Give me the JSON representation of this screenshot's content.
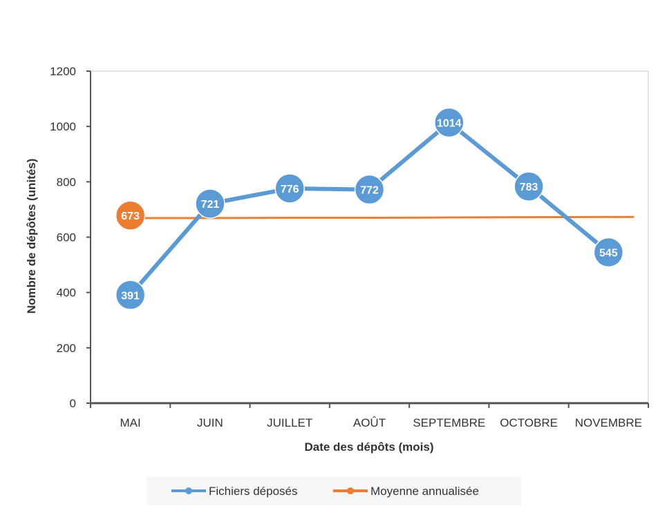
{
  "chart_data": {
    "type": "line",
    "title": "",
    "xlabel": "Date des dépôts (mois)",
    "ylabel": "Nombre de dépôtes (unités)",
    "categories": [
      "MAI",
      "JUIN",
      "JUILLET",
      "AOÛT",
      "SEPTEMBRE",
      "OCTOBRE",
      "NOVEMBRE"
    ],
    "ylim": [
      0,
      1200
    ],
    "yticks": [
      "0",
      "200",
      "400",
      "600",
      "800",
      "1000",
      "1200"
    ],
    "grid": false,
    "legend_position": "bottom",
    "series": [
      {
        "name": "Fichiers déposés",
        "color": "#5B9BD5",
        "values": [
          391,
          721,
          776,
          772,
          1014,
          783,
          545
        ],
        "labels": [
          "391",
          "721",
          "776",
          "772",
          "1014",
          "783",
          "545"
        ]
      },
      {
        "name": "Moyenne annualisée",
        "color": "#ED7D31",
        "values": [
          669,
          669,
          670,
          670,
          671,
          672,
          673
        ],
        "labels": [
          "673"
        ]
      }
    ]
  }
}
